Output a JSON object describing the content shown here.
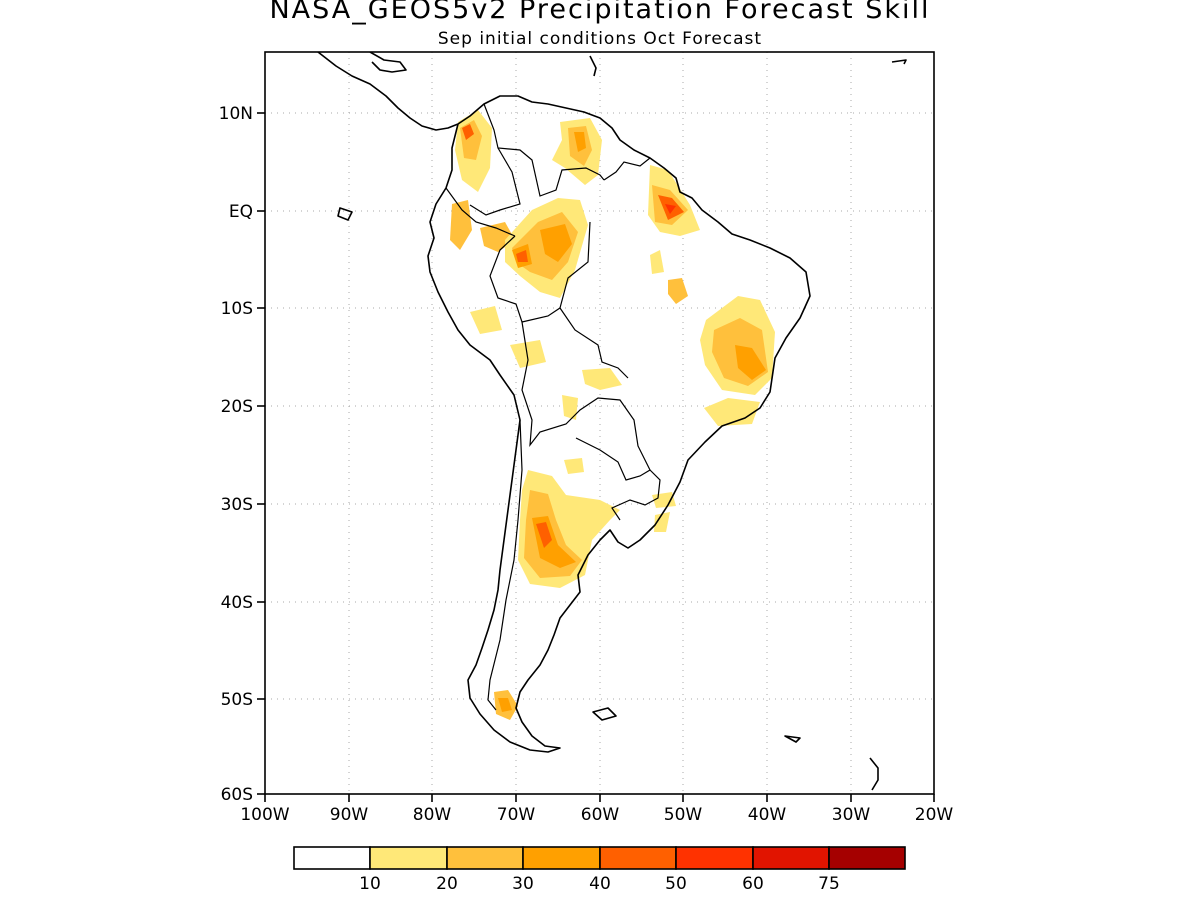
{
  "title": "NASA_GEOS5v2 Precipitation Forecast Skill",
  "subtitle": "Sep initial conditions  Oct Forecast",
  "lat_labels": [
    "10N",
    "EQ",
    "10S",
    "20S",
    "30S",
    "40S",
    "50S",
    "60S"
  ],
  "lon_labels": [
    "100W",
    "90W",
    "80W",
    "70W",
    "60W",
    "50W",
    "40W",
    "30W",
    "20W"
  ],
  "map_extent": {
    "lon_min": -100,
    "lon_max": -20,
    "lat_min": -60,
    "lat_max": 15
  },
  "colorbar": {
    "labels": [
      "10",
      "20",
      "30",
      "40",
      "50",
      "60",
      "75"
    ],
    "colors": [
      "#ffffff",
      "#ffe878",
      "#ffc03c",
      "#ffa000",
      "#ff6000",
      "#ff3200",
      "#e11400",
      "#a50000"
    ]
  },
  "chart_data": {
    "type": "heatmap",
    "title": "NASA_GEOS5v2 Precipitation Forecast Skill",
    "subtitle": "Sep initial conditions  Oct Forecast",
    "x_range": [
      -100,
      -20
    ],
    "y_range": [
      -60,
      15
    ],
    "levels": [
      10,
      20,
      30,
      40,
      50,
      60,
      75
    ],
    "grid": true,
    "skill_regions": [
      {
        "lon": -74.5,
        "lat": 8,
        "level": 40
      },
      {
        "lon": -64,
        "lat": 7.5,
        "level": 30
      },
      {
        "lon": -51.5,
        "lat": 0,
        "level": 50
      },
      {
        "lon": -74.5,
        "lat": 0,
        "level": 30
      },
      {
        "lon": -70,
        "lat": -5,
        "level": 40
      },
      {
        "lon": -65,
        "lat": -3,
        "level": 30
      },
      {
        "lon": -42.5,
        "lat": -16,
        "level": 30
      },
      {
        "lon": -66,
        "lat": -33,
        "level": 40
      },
      {
        "lon": -70.5,
        "lat": -51.5,
        "level": 20
      }
    ]
  }
}
